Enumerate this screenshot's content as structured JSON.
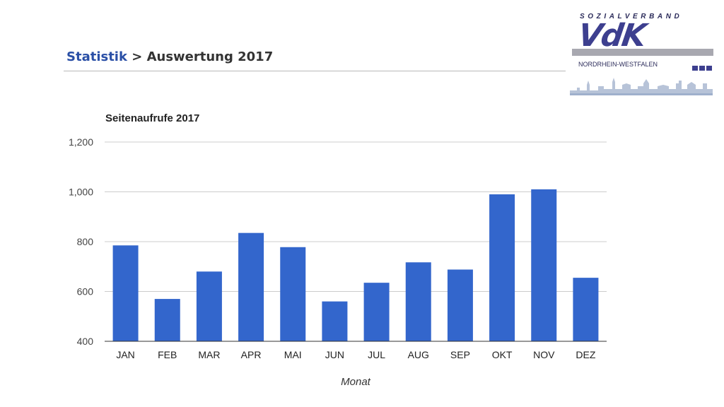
{
  "header": {
    "breadcrumb_link": "Statistik",
    "breadcrumb_sep": " > ",
    "breadcrumb_current": "Auswertung 2017"
  },
  "logo": {
    "org_name": "SOZIALVERBAND",
    "brand": "VdK",
    "region": "NORDRHEIN-WESTFALEN"
  },
  "colors": {
    "bar": "#3366cc",
    "grid": "#cccccc",
    "link": "#2a4fa6"
  },
  "chart_data": {
    "type": "bar",
    "title": "Seitenaufrufe 2017",
    "xlabel": "Monat",
    "ylabel": "",
    "categories": [
      "JAN",
      "FEB",
      "MAR",
      "APR",
      "MAI",
      "JUN",
      "JUL",
      "AUG",
      "SEP",
      "OKT",
      "NOV",
      "DEZ"
    ],
    "values": [
      785,
      570,
      680,
      835,
      778,
      560,
      635,
      717,
      688,
      990,
      1010,
      655
    ],
    "ylim": [
      400,
      1200
    ],
    "yticks": [
      400,
      600,
      800,
      1000,
      1200
    ],
    "ytick_labels": [
      "400",
      "600",
      "800",
      "1,000",
      "1,200"
    ],
    "grid": true,
    "legend": "none"
  }
}
